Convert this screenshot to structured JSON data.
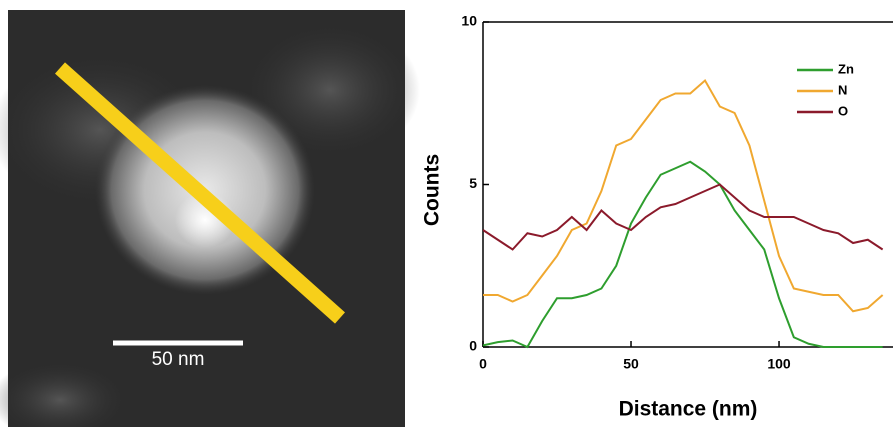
{
  "image": {
    "scale_bar_label": "50 nm"
  },
  "chart_data": {
    "type": "line",
    "x_label": "Distance (nm)",
    "y_label": "Counts",
    "x": [
      0,
      5,
      10,
      15,
      20,
      25,
      30,
      35,
      40,
      45,
      50,
      55,
      60,
      65,
      70,
      75,
      80,
      85,
      90,
      95,
      100,
      105,
      110,
      115,
      120,
      125,
      130,
      135
    ],
    "series": [
      {
        "name": "Zn",
        "color": "#2e9e2e",
        "values": [
          0.05,
          0.15,
          0.2,
          0,
          0.8,
          1.5,
          1.5,
          1.6,
          1.8,
          2.5,
          3.8,
          4.6,
          5.3,
          5.5,
          5.7,
          5.4,
          5.0,
          4.2,
          3.6,
          3.0,
          1.5,
          0.3,
          0.1,
          0,
          0,
          0,
          0,
          0
        ]
      },
      {
        "name": "N",
        "color": "#f0a830",
        "values": [
          1.6,
          1.6,
          1.4,
          1.6,
          2.2,
          2.8,
          3.6,
          3.8,
          4.8,
          6.2,
          6.4,
          7.0,
          7.6,
          7.8,
          7.8,
          8.2,
          7.4,
          7.2,
          6.2,
          4.5,
          2.8,
          1.8,
          1.7,
          1.6,
          1.6,
          1.1,
          1.2,
          1.6
        ]
      },
      {
        "name": "O",
        "color": "#8b1a2b",
        "values": [
          3.6,
          3.3,
          3.0,
          3.5,
          3.4,
          3.6,
          4.0,
          3.6,
          4.2,
          3.8,
          3.6,
          4.0,
          4.3,
          4.4,
          4.6,
          4.8,
          5.0,
          4.6,
          4.2,
          4.0,
          4.0,
          4.0,
          3.8,
          3.6,
          3.5,
          3.2,
          3.3,
          3.0
        ]
      }
    ],
    "xlim": [
      0,
      138.5
    ],
    "xticks": [
      0,
      50,
      100
    ],
    "ylim": [
      0,
      10
    ],
    "yticks": [
      0,
      5,
      10
    ]
  }
}
